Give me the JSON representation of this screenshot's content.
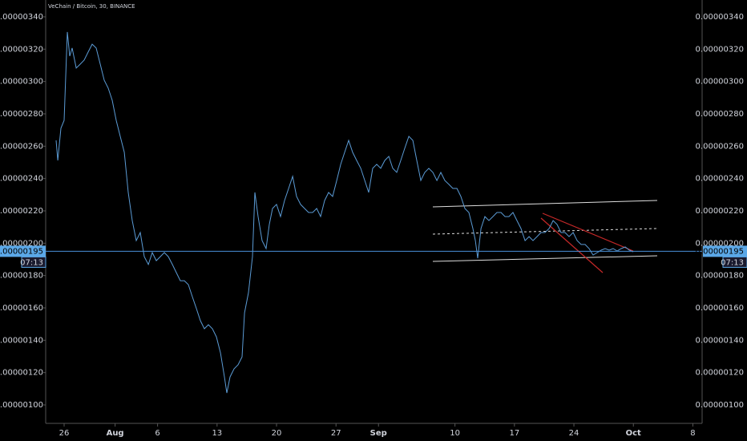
{
  "chart_data": {
    "type": "line",
    "title": "VeChain / Bitcoin, 30, BINANCE",
    "x": [
      -0.94,
      -0.75,
      -0.38,
      0,
      0.38,
      0.66,
      0.94,
      1.42,
      1.89,
      2.36,
      2.83,
      3.3,
      3.77,
      4.25,
      4.72,
      5.19,
      5.66,
      6.13,
      6.6,
      7.08,
      7.55,
      8.02,
      8.49,
      8.96,
      9.43,
      9.91,
      10.38,
      10.85,
      11.32,
      11.79,
      12.26,
      12.74,
      13.21,
      13.68,
      14.15,
      14.62,
      15.09,
      15.57,
      16.04,
      16.51,
      16.98,
      17.45,
      17.92,
      18.4,
      18.87,
      19.15,
      19.53,
      20.0,
      20.47,
      20.94,
      21.23,
      21.7,
      22.17,
      22.45,
      22.83,
      23.3,
      23.77,
      24.15,
      24.53,
      25.0,
      25.47,
      25.94,
      26.42,
      26.89,
      27.36,
      27.83,
      28.3,
      28.77,
      29.25,
      29.72,
      30.19,
      30.66,
      31.13,
      31.6,
      32.08,
      32.55,
      33.02,
      33.49,
      33.96,
      34.43,
      34.91,
      35.38,
      35.85,
      36.32,
      36.79,
      37.26,
      37.74,
      38.21,
      38.68,
      39.15,
      39.62,
      40.09,
      40.57,
      41.04,
      41.51,
      41.98,
      42.45,
      42.92,
      43.4,
      43.87,
      44.34,
      44.81,
      45.28,
      45.75,
      46.23,
      46.7,
      47.17,
      47.64,
      48.11,
      48.4,
      48.68,
      49.06,
      49.53,
      50.0,
      50.47,
      50.94,
      51.42,
      51.89,
      52.36,
      52.83,
      53.3,
      53.77,
      54.25,
      54.72,
      55.19,
      55.66,
      56.13,
      56.6,
      57.08,
      57.55,
      58.02,
      58.49,
      58.96,
      59.43,
      59.91,
      60.38,
      60.85,
      61.32,
      61.79,
      62.26,
      62.74,
      63.21,
      63.68,
      64.15,
      64.62,
      65.09,
      65.57,
      66.04,
      66.51,
      66.98
    ],
    "series": [
      {
        "color": "#5b9bd5",
        "values": [
          2.636e-06,
          2.512e-06,
          2.711e-06,
          2.76e-06,
          3.306e-06,
          3.157e-06,
          3.207e-06,
          3.083e-06,
          3.107e-06,
          3.132e-06,
          3.182e-06,
          3.231e-06,
          3.207e-06,
          3.107e-06,
          3.008e-06,
          2.959e-06,
          2.884e-06,
          2.76e-06,
          2.661e-06,
          2.562e-06,
          2.314e-06,
          2.14e-06,
          2.016e-06,
          2.066e-06,
          1.917e-06,
          1.868e-06,
          1.942e-06,
          1.892e-06,
          1.917e-06,
          1.942e-06,
          1.917e-06,
          1.868e-06,
          1.818e-06,
          1.768e-06,
          1.768e-06,
          1.744e-06,
          1.669e-06,
          1.595e-06,
          1.521e-06,
          1.471e-06,
          1.496e-06,
          1.471e-06,
          1.421e-06,
          1.322e-06,
          1.173e-06,
          1.074e-06,
          1.173e-06,
          1.223e-06,
          1.248e-06,
          1.297e-06,
          1.57e-06,
          1.694e-06,
          1.917e-06,
          2.314e-06,
          2.165e-06,
          2.016e-06,
          1.967e-06,
          2.116e-06,
          2.215e-06,
          2.24e-06,
          2.165e-06,
          2.264e-06,
          2.339e-06,
          2.413e-06,
          2.289e-06,
          2.24e-06,
          2.215e-06,
          2.19e-06,
          2.19e-06,
          2.215e-06,
          2.165e-06,
          2.264e-06,
          2.314e-06,
          2.289e-06,
          2.388e-06,
          2.488e-06,
          2.562e-06,
          2.636e-06,
          2.562e-06,
          2.512e-06,
          2.463e-06,
          2.388e-06,
          2.314e-06,
          2.463e-06,
          2.488e-06,
          2.463e-06,
          2.512e-06,
          2.537e-06,
          2.463e-06,
          2.438e-06,
          2.512e-06,
          2.587e-06,
          2.661e-06,
          2.636e-06,
          2.512e-06,
          2.388e-06,
          2.438e-06,
          2.463e-06,
          2.438e-06,
          2.388e-06,
          2.438e-06,
          2.388e-06,
          2.364e-06,
          2.339e-06,
          2.339e-06,
          2.289e-06,
          2.215e-06,
          2.19e-06,
          2.091e-06,
          2.016e-06,
          1.907e-06,
          2.091e-06,
          2.165e-06,
          2.14e-06,
          2.165e-06,
          2.19e-06,
          2.19e-06,
          2.165e-06,
          2.165e-06,
          2.19e-06,
          2.14e-06,
          2.091e-06,
          2.016e-06,
          2.041e-06,
          2.016e-06,
          2.041e-06,
          2.066e-06,
          2.066e-06,
          2.091e-06,
          2.14e-06,
          2.116e-06,
          2.066e-06,
          2.066e-06,
          2.041e-06,
          2.066e-06,
          2.016e-06,
          1.992e-06,
          1.992e-06,
          1.967e-06,
          1.927e-06,
          1.942e-06,
          1.957e-06,
          1.967e-06,
          1.957e-06,
          1.967e-06,
          1.952e-06,
          1.967e-06,
          1.977e-06,
          1.957e-06,
          1.947e-06
        ]
      }
    ],
    "xlim": [
      -2.17,
      75.09
    ],
    "xticks": [
      {
        "value": 0,
        "label": "26"
      },
      {
        "value": 6,
        "label": "Aug"
      },
      {
        "value": 11,
        "label": "6"
      },
      {
        "value": 18,
        "label": "13"
      },
      {
        "value": 25,
        "label": "20"
      },
      {
        "value": 32,
        "label": "27"
      },
      {
        "value": 37,
        "label": "Sep"
      },
      {
        "value": 46,
        "label": "10"
      },
      {
        "value": 53,
        "label": "17"
      },
      {
        "value": 60,
        "label": "24"
      },
      {
        "value": 67,
        "label": "Oct"
      },
      {
        "value": 74,
        "label": "8"
      }
    ],
    "ylim": [
      8.86e-07,
      3.504e-06
    ],
    "yticks": [
      {
        "value": 3.4e-06,
        "label": "0.00000340"
      },
      {
        "value": 3.2e-06,
        "label": "0.00000320"
      },
      {
        "value": 3e-06,
        "label": "0.00000300"
      },
      {
        "value": 2.8e-06,
        "label": "0.00000280"
      },
      {
        "value": 2.6e-06,
        "label": "0.00000260"
      },
      {
        "value": 2.4e-06,
        "label": "0.00000240"
      },
      {
        "value": 2.2e-06,
        "label": "0.00000220"
      },
      {
        "value": 2e-06,
        "label": "0.00000200"
      },
      {
        "value": 1.8e-06,
        "label": "0.00000180"
      },
      {
        "value": 1.6e-06,
        "label": "0.00000160"
      },
      {
        "value": 1.4e-06,
        "label": "0.00000140"
      },
      {
        "value": 1.2e-06,
        "label": "0.00000120"
      },
      {
        "value": 1e-06,
        "label": "0.00000100"
      }
    ],
    "last_price": {
      "value": 1.95e-06,
      "label": "0.00000195"
    },
    "countdown": "07:13",
    "grid": false
  }
}
